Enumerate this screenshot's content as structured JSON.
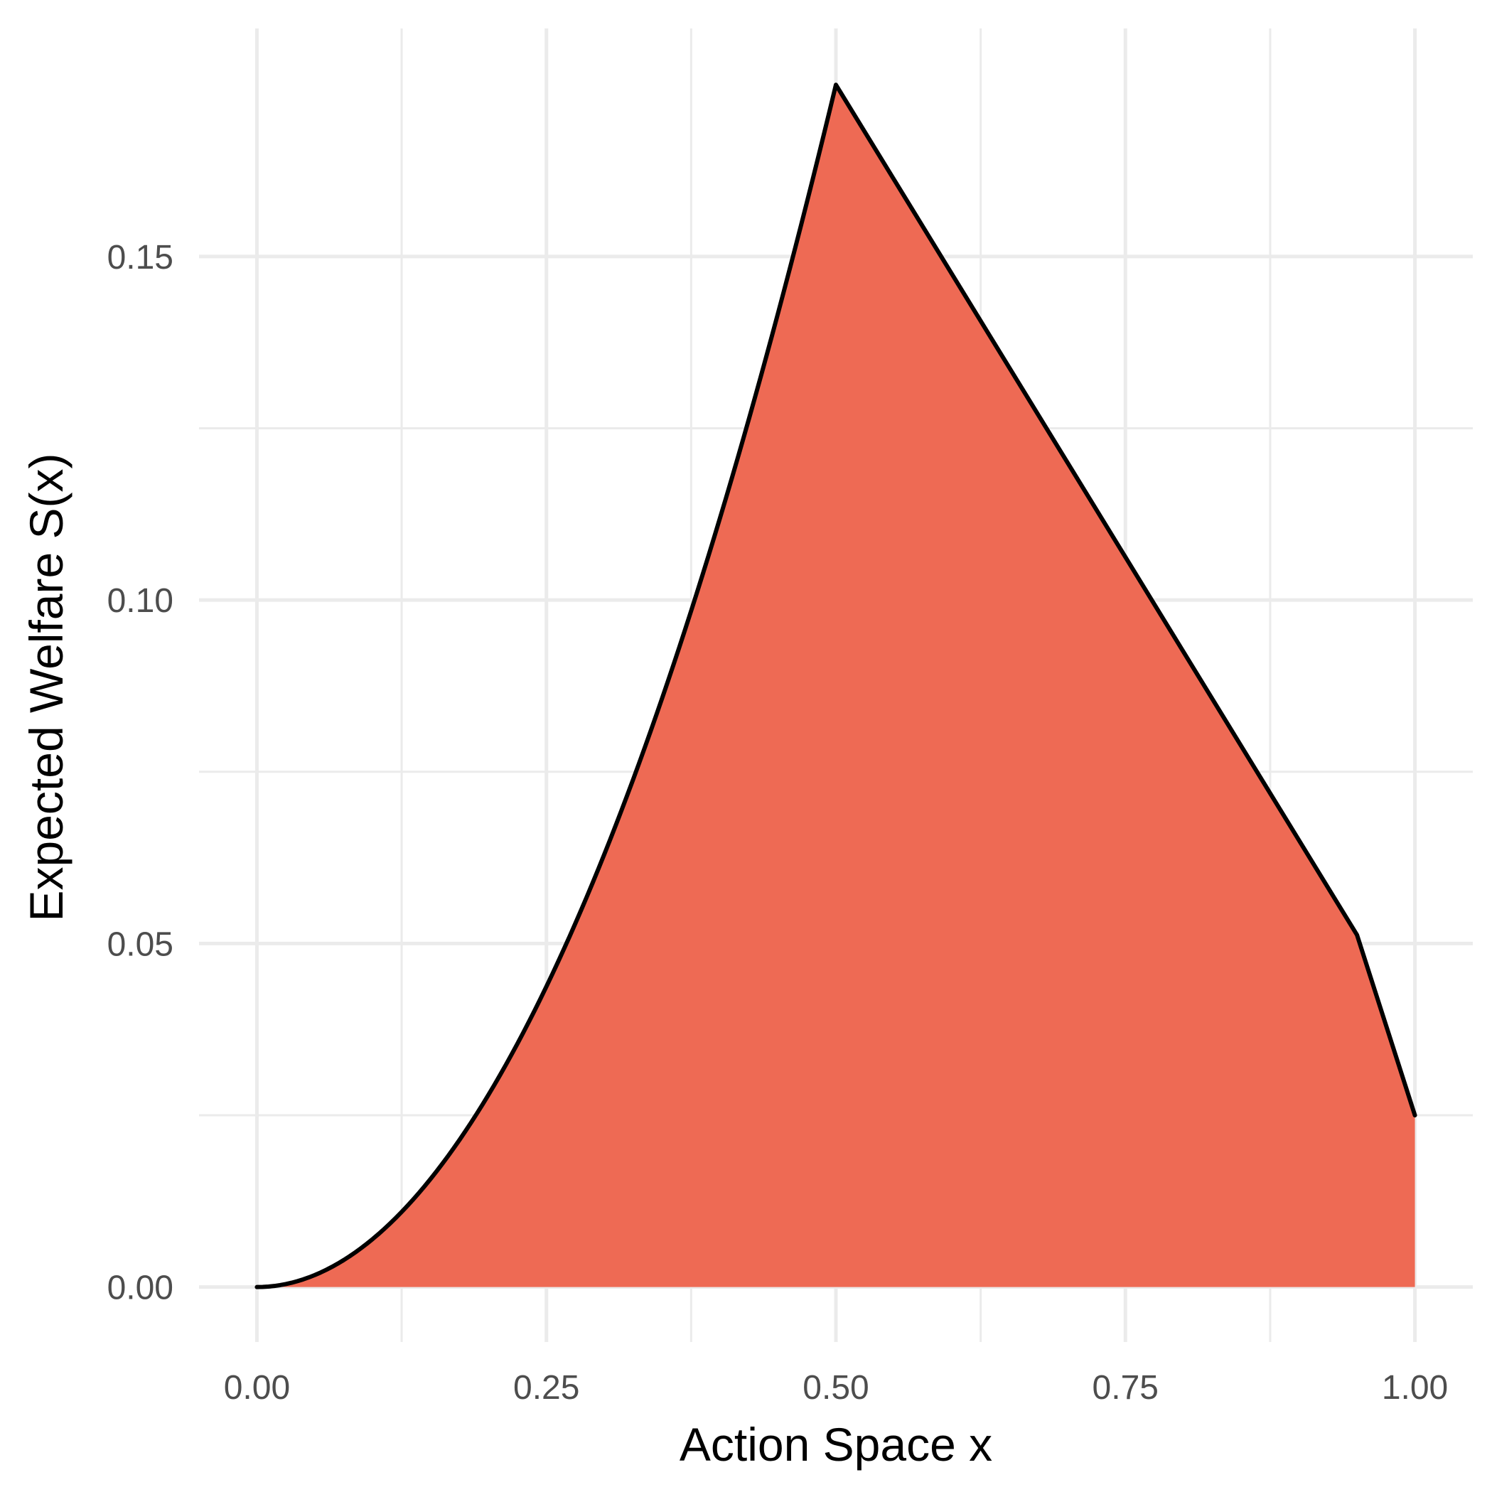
{
  "chart_data": {
    "type": "area",
    "xlabel": "Action Space x",
    "ylabel": "Expected Welfare S(x)",
    "xlim": [
      -0.05,
      1.05
    ],
    "ylim": [
      -0.008,
      0.1832
    ],
    "x_ticks": [
      0.0,
      0.25,
      0.5,
      0.75,
      1.0
    ],
    "x_tick_labels": [
      "0.00",
      "0.25",
      "0.50",
      "0.75",
      "1.00"
    ],
    "x_minor_ticks": [
      0.125,
      0.375,
      0.625,
      0.875
    ],
    "y_ticks": [
      0.0,
      0.05,
      0.1,
      0.15
    ],
    "y_tick_labels": [
      "0.00",
      "0.05",
      "0.10",
      "0.15"
    ],
    "y_minor_ticks": [
      0.025,
      0.075,
      0.125
    ],
    "grid": true,
    "legend": "none",
    "fill_color": "#ee6a54",
    "line_color": "#000000",
    "series": [
      {
        "x": [
          0.0,
          0.05,
          0.1,
          0.15,
          0.2,
          0.25,
          0.3,
          0.35,
          0.4,
          0.45,
          0.5,
          0.55,
          0.6,
          0.65,
          0.7,
          0.75,
          0.8,
          0.85,
          0.9,
          0.95,
          1.0
        ],
        "values": [
          0.0,
          0.0018,
          0.007,
          0.0158,
          0.028,
          0.0438,
          0.063,
          0.0858,
          0.112,
          0.1418,
          0.175,
          0.16125,
          0.1475,
          0.13375,
          0.12,
          0.10625,
          0.0925,
          0.07875,
          0.065,
          0.05125,
          0.025
        ]
      }
    ]
  }
}
